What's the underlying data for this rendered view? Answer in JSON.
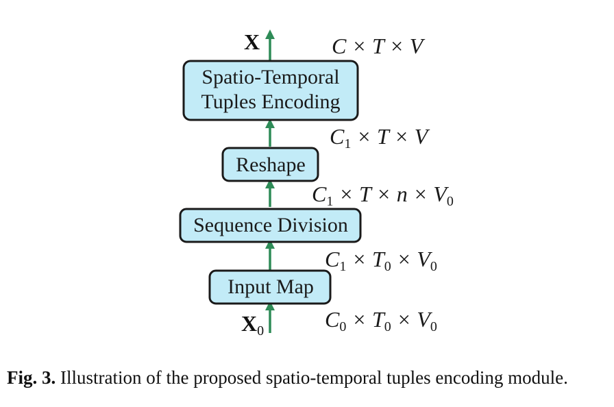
{
  "boxes": {
    "stte_line1": "Spatio-Temporal",
    "stte_line2": "Tuples Encoding",
    "reshape": "Reshape",
    "sequence_division": "Sequence Division",
    "input_map": "Input Map"
  },
  "variables": {
    "output": "X",
    "input_base": "X",
    "input_sub": "0"
  },
  "dimensions": {
    "d1": {
      "p1": "C",
      "s1": "",
      "p2": " × ",
      "p3": "T",
      "s3": "",
      "p4": " × ",
      "p5": "V",
      "s5": ""
    },
    "d2": {
      "p1": "C",
      "s1": "1",
      "p2": " × ",
      "p3": "T",
      "s3": "",
      "p4": " × ",
      "p5": "V",
      "s5": ""
    },
    "d3": {
      "p1": "C",
      "s1": "1",
      "p2": " × ",
      "p3": "T",
      "s3": "",
      "p4": " × ",
      "p5": "n",
      "s5": "",
      "p6": " × ",
      "p7": "V",
      "s7": "0"
    },
    "d4": {
      "p1": "C",
      "s1": "1",
      "p2": " × ",
      "p3": "T",
      "s3": "0",
      "p4": " × ",
      "p5": "V",
      "s5": "0"
    },
    "d5": {
      "p1": "C",
      "s1": "0",
      "p2": " × ",
      "p3": "T",
      "s3": "0",
      "p4": " × ",
      "p5": "V",
      "s5": "0"
    }
  },
  "caption": {
    "label": "Fig. 3.",
    "text": " Illustration of the proposed spatio-temporal tuples encoding module."
  },
  "colors": {
    "box_fill": "#c2ebf7",
    "box_stroke": "#1a1a1a",
    "arrow": "#2e8b57"
  }
}
